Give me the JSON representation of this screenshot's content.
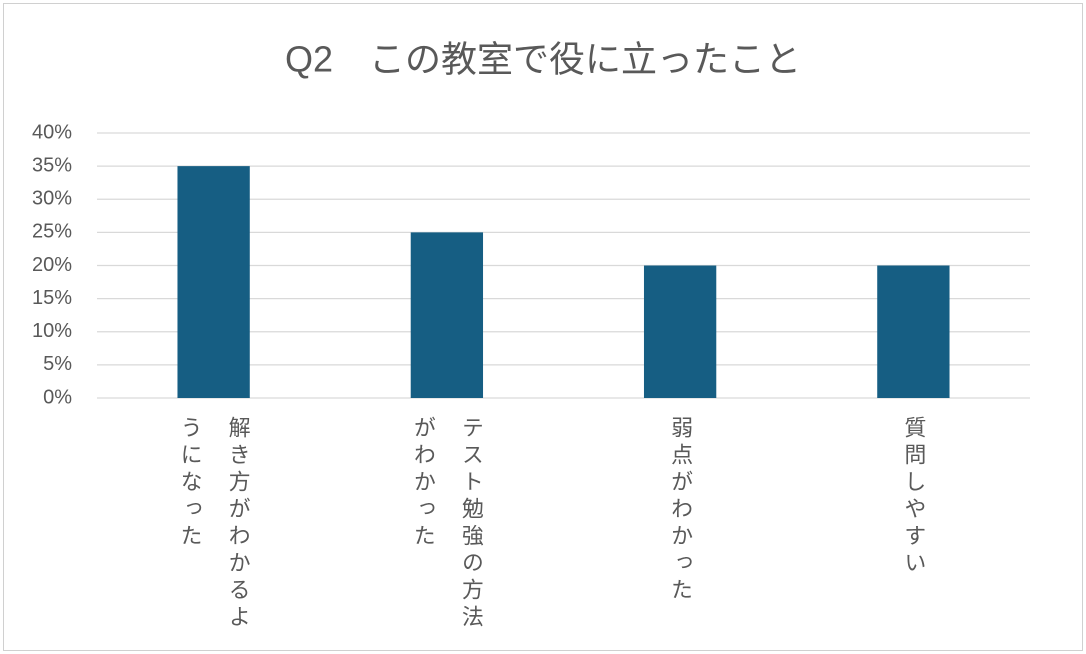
{
  "chart_data": {
    "type": "bar",
    "title": "Q2　この教室で役に立ったこと",
    "categories": [
      "解き方がわかるようになった",
      "テスト勉強の方法がわかった",
      "弱点がわかった",
      "質問しやすい"
    ],
    "values": [
      35,
      25,
      20,
      20
    ],
    "color": "#165e83",
    "ylim": [
      0,
      40
    ],
    "yticks": [
      {
        "value": 0,
        "label": "0%"
      },
      {
        "value": 5,
        "label": "5%"
      },
      {
        "value": 10,
        "label": "10%"
      },
      {
        "value": 15,
        "label": "15%"
      },
      {
        "value": 20,
        "label": "20%"
      },
      {
        "value": 25,
        "label": "25%"
      },
      {
        "value": 30,
        "label": "30%"
      },
      {
        "value": 35,
        "label": "35%"
      },
      {
        "value": 40,
        "label": "40%"
      }
    ],
    "grid": true
  }
}
